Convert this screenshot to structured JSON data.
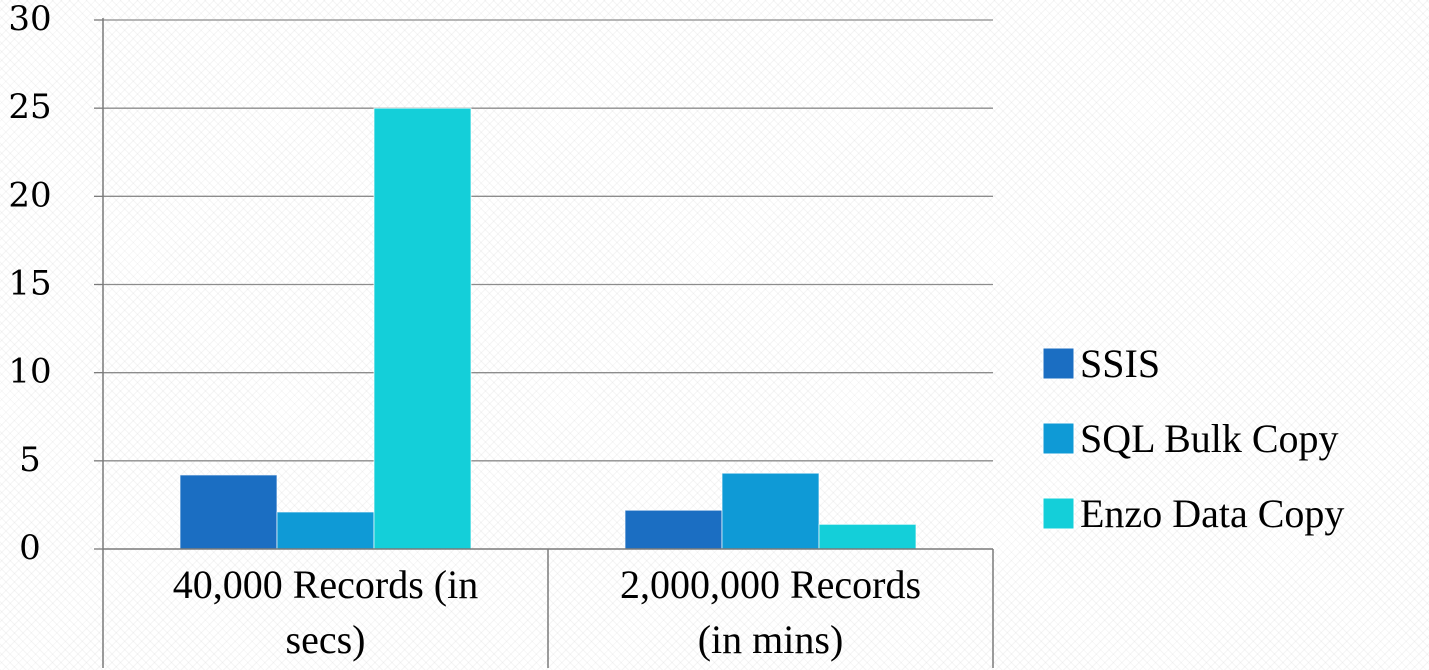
{
  "chart_data": {
    "type": "bar",
    "categories": [
      "40,000 Records (in secs)",
      "2,000,000 Records (in mins)"
    ],
    "category_lines": [
      [
        "40,000 Records (in",
        "secs)"
      ],
      [
        "2,000,000 Records",
        "(in mins)"
      ]
    ],
    "series": [
      {
        "name": "SSIS",
        "values": [
          4.2,
          2.2
        ],
        "color": "#1b6ec2"
      },
      {
        "name": "SQL Bulk Copy",
        "values": [
          2.1,
          4.3
        ],
        "color": "#0f9ad6"
      },
      {
        "name": "Enzo Data Copy",
        "values": [
          25,
          1.4
        ],
        "color": "#14cfd9"
      }
    ],
    "yticks": [
      0,
      5,
      10,
      15,
      20,
      25,
      30
    ],
    "ytick_labels": [
      "0",
      "5",
      "10",
      "15",
      "20",
      "25",
      "30"
    ],
    "ylim": [
      0,
      30
    ],
    "grid": true,
    "legend_position": "right",
    "title": "",
    "xlabel": "",
    "ylabel": ""
  }
}
